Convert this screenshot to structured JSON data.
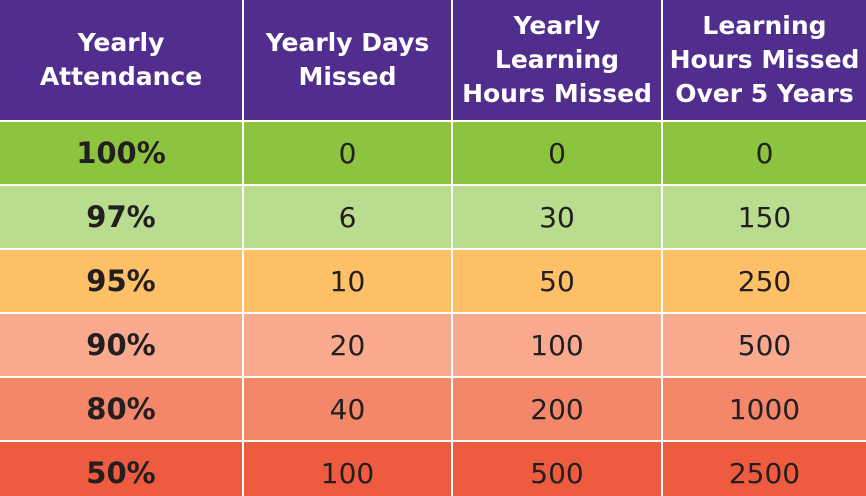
{
  "table": {
    "header": [
      [
        "Yearly",
        "Attendance"
      ],
      [
        "Yearly Days",
        "Missed"
      ],
      [
        "Yearly",
        "Learning",
        "Hours Missed"
      ],
      [
        "Learning",
        "Hours Missed",
        "Over 5 Years"
      ]
    ],
    "header_color": "#512d8d",
    "row_colors": [
      "#8cc43f",
      "#b9dc8e",
      "#fec066",
      "#f9aa8e",
      "#f4876a",
      "#ef5b3e"
    ],
    "rows": [
      [
        "100%",
        "0",
        "0",
        "0"
      ],
      [
        "97%",
        "6",
        "30",
        "150"
      ],
      [
        "95%",
        "10",
        "50",
        "250"
      ],
      [
        "90%",
        "20",
        "100",
        "500"
      ],
      [
        "80%",
        "40",
        "200",
        "1000"
      ],
      [
        "50%",
        "100",
        "500",
        "2500"
      ]
    ]
  }
}
